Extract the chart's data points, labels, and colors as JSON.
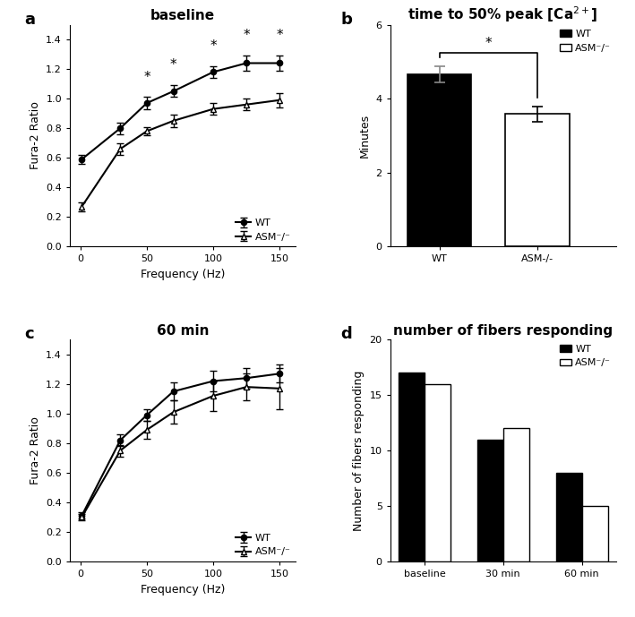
{
  "panel_a": {
    "title": "baseline",
    "xlabel": "Frequency (Hz)",
    "ylabel": "Fura-2 Ratio",
    "freq": [
      1,
      30,
      50,
      70,
      100,
      125,
      150
    ],
    "WT_mean": [
      0.59,
      0.8,
      0.97,
      1.05,
      1.18,
      1.24,
      1.24
    ],
    "WT_err": [
      0.03,
      0.04,
      0.04,
      0.04,
      0.04,
      0.05,
      0.05
    ],
    "ASM_mean": [
      0.27,
      0.66,
      0.78,
      0.85,
      0.93,
      0.96,
      0.99
    ],
    "ASM_err": [
      0.03,
      0.04,
      0.03,
      0.04,
      0.04,
      0.04,
      0.05
    ],
    "asterisk_x": [
      50,
      70,
      100,
      125,
      150
    ],
    "ylim": [
      0.0,
      1.5
    ],
    "yticks": [
      0.0,
      0.2,
      0.4,
      0.6,
      0.8,
      1.0,
      1.2,
      1.4
    ],
    "xticks": [
      0,
      50,
      100,
      150
    ]
  },
  "panel_b": {
    "title": "time to 50% peak [Ca2+]",
    "xlabel": "",
    "ylabel": "Minutes",
    "categories": [
      "WT",
      "ASM-/-"
    ],
    "WT_mean": 4.65,
    "WT_err": 0.22,
    "ASM_mean": 3.58,
    "ASM_err": 0.2,
    "ylim": [
      0,
      6
    ],
    "yticks": [
      0,
      2,
      4,
      6
    ]
  },
  "panel_c": {
    "title": "60 min",
    "xlabel": "Frequency (Hz)",
    "ylabel": "Fura-2 Ratio",
    "freq": [
      1,
      30,
      50,
      70,
      100,
      125,
      150
    ],
    "WT_mean": [
      0.31,
      0.82,
      0.99,
      1.15,
      1.22,
      1.24,
      1.27
    ],
    "WT_err": [
      0.02,
      0.04,
      0.04,
      0.06,
      0.07,
      0.07,
      0.06
    ],
    "ASM_mean": [
      0.3,
      0.75,
      0.89,
      1.01,
      1.12,
      1.18,
      1.17
    ],
    "ASM_err": [
      0.02,
      0.04,
      0.06,
      0.08,
      0.1,
      0.09,
      0.14
    ],
    "ylim": [
      0.0,
      1.5
    ],
    "yticks": [
      0.0,
      0.2,
      0.4,
      0.6,
      0.8,
      1.0,
      1.2,
      1.4
    ],
    "xticks": [
      0,
      50,
      100,
      150
    ]
  },
  "panel_d": {
    "title": "number of fibers responding",
    "xlabel": "",
    "ylabel": "Number of fibers responding",
    "categories": [
      "baseline",
      "30 min",
      "60 min"
    ],
    "WT_values": [
      17,
      11,
      8
    ],
    "ASM_values": [
      16,
      12,
      5
    ],
    "ylim": [
      0,
      20
    ],
    "yticks": [
      0,
      5,
      10,
      15,
      20
    ]
  }
}
